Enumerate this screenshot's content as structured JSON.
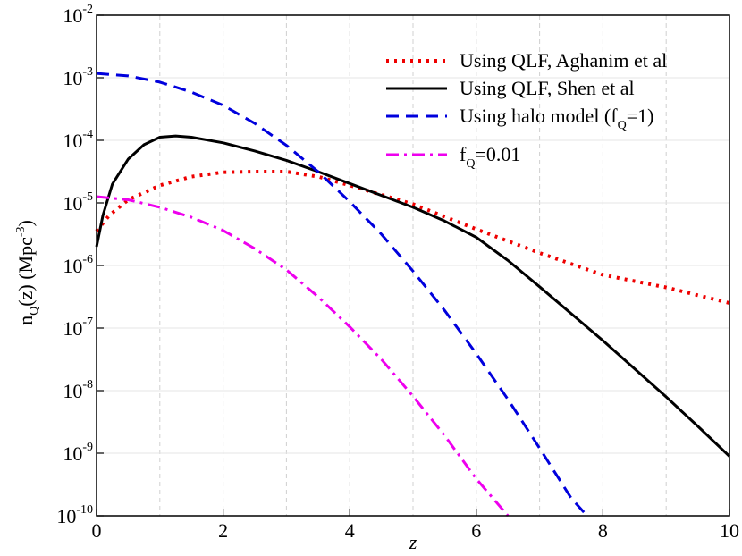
{
  "chart_data": {
    "type": "line",
    "title": "",
    "xlabel": "z",
    "ylabel": {
      "base": "n",
      "sub": "Q",
      "mid": "(z) (Mpc",
      "sup": "-3",
      "end": ")"
    },
    "xlim": [
      0,
      10
    ],
    "ylim_log10": [
      -10,
      -2
    ],
    "x_ticks": [
      0,
      2,
      4,
      6,
      8,
      10
    ],
    "x_tick_labels": [
      "0",
      "2",
      "4",
      "6",
      "8",
      "10"
    ],
    "x_gridlines": [
      1,
      2,
      3,
      4,
      5,
      6,
      7,
      8,
      9
    ],
    "y_ticks": [
      {
        "base": "10",
        "exp": "-2",
        "value": -2
      },
      {
        "base": "10",
        "exp": "-3",
        "value": -3
      },
      {
        "base": "10",
        "exp": "-4",
        "value": -4
      },
      {
        "base": "10",
        "exp": "-5",
        "value": -5
      },
      {
        "base": "10",
        "exp": "-6",
        "value": -6
      },
      {
        "base": "10",
        "exp": "-7",
        "value": -7
      },
      {
        "base": "10",
        "exp": "-8",
        "value": -8
      },
      {
        "base": "10",
        "exp": "-9",
        "value": -9
      },
      {
        "base": "10",
        "exp": "-10",
        "value": -10
      }
    ],
    "legend_position": "top-right",
    "series": [
      {
        "name": "Using QLF, Aghanim et al",
        "legend": {
          "text": "Using QLF, Aghanim et al"
        },
        "color": "#ee0000",
        "style": "dotted",
        "x": [
          0,
          0.2,
          0.5,
          1.0,
          1.5,
          2.0,
          2.5,
          3.0,
          3.5,
          4.0,
          5.0,
          6.0,
          7.0,
          8.0,
          9.0,
          10.0
        ],
        "log10y": [
          -5.45,
          -5.2,
          -4.95,
          -4.72,
          -4.58,
          -4.51,
          -4.5,
          -4.5,
          -4.58,
          -4.72,
          -5.02,
          -5.42,
          -5.8,
          -6.15,
          -6.35,
          -6.6
        ]
      },
      {
        "name": "Using QLF, Shen et al",
        "legend": {
          "text": "Using QLF, Shen et al"
        },
        "color": "#000000",
        "style": "solid",
        "x": [
          0,
          0.1,
          0.25,
          0.5,
          0.75,
          1.0,
          1.25,
          1.5,
          2.0,
          2.5,
          3.0,
          3.5,
          4.0,
          4.5,
          5.0,
          5.5,
          6.0,
          6.5,
          7.0,
          7.5,
          8.0,
          8.5,
          9.0,
          9.5,
          10.0
        ],
        "log10y": [
          -5.7,
          -5.2,
          -4.7,
          -4.3,
          -4.07,
          -3.95,
          -3.93,
          -3.95,
          -4.04,
          -4.17,
          -4.32,
          -4.5,
          -4.69,
          -4.88,
          -5.07,
          -5.29,
          -5.55,
          -5.92,
          -6.34,
          -6.77,
          -7.2,
          -7.65,
          -8.1,
          -8.57,
          -9.05
        ]
      },
      {
        "name": "Using halo model (fQ=1)",
        "legend": {
          "text": "Using halo model (f",
          "sub": "Q",
          "tail": "=1)"
        },
        "color": "#0000dd",
        "style": "dashed",
        "x": [
          0,
          0.5,
          1.0,
          1.5,
          2.0,
          2.5,
          3.0,
          3.5,
          4.0,
          4.5,
          5.0,
          5.5,
          6.0,
          6.5,
          7.0,
          7.5,
          7.75
        ],
        "log10y": [
          -2.93,
          -2.97,
          -3.07,
          -3.23,
          -3.44,
          -3.73,
          -4.08,
          -4.5,
          -4.98,
          -5.5,
          -6.09,
          -6.72,
          -7.41,
          -8.14,
          -8.92,
          -9.72,
          -10.0
        ]
      },
      {
        "name": "fQ=0.01",
        "legend": {
          "text": "f",
          "sub": "Q",
          "tail": "=0.01"
        },
        "color": "#ee00ee",
        "style": "dashdot",
        "x": [
          0,
          0.5,
          1.0,
          1.5,
          2.0,
          2.5,
          3.0,
          3.5,
          4.0,
          4.5,
          5.0,
          5.5,
          6.0,
          6.5
        ],
        "log10y": [
          -4.9,
          -4.95,
          -5.07,
          -5.23,
          -5.44,
          -5.73,
          -6.07,
          -6.5,
          -6.98,
          -7.5,
          -8.09,
          -8.72,
          -9.41,
          -10.0
        ]
      }
    ]
  }
}
